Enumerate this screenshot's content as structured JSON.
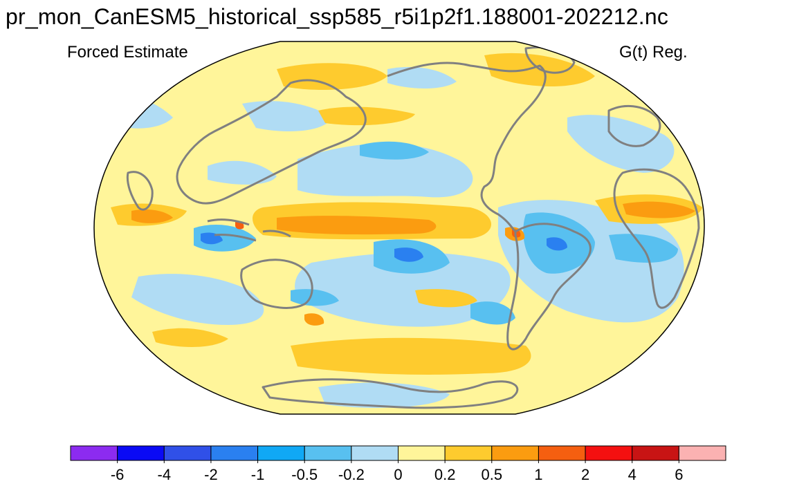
{
  "title": "pr_mon_CanESM5_historical_ssp585_r5i1p2f1.188001-202212.nc",
  "left_string": "Forced Estimate",
  "right_string": "G(t) Reg.",
  "colorbar": {
    "colors": [
      "#8c2bf0",
      "#0a0af5",
      "#3050e8",
      "#2a80f0",
      "#10a8f5",
      "#58c0f0",
      "#b0dcf4",
      "#fff59a",
      "#fecb2e",
      "#fb9c10",
      "#f55f10",
      "#f41010",
      "#c81414",
      "#fbb2b2"
    ],
    "labels": [
      "-6",
      "-4",
      "-2",
      "-1",
      "-0.5",
      "-0.2",
      "0",
      "0.2",
      "0.5",
      "1",
      "2",
      "4",
      "6"
    ]
  },
  "map": {
    "projection": "robinson-like",
    "background_color": "#fff59a",
    "coastline_color": "#808080"
  }
}
